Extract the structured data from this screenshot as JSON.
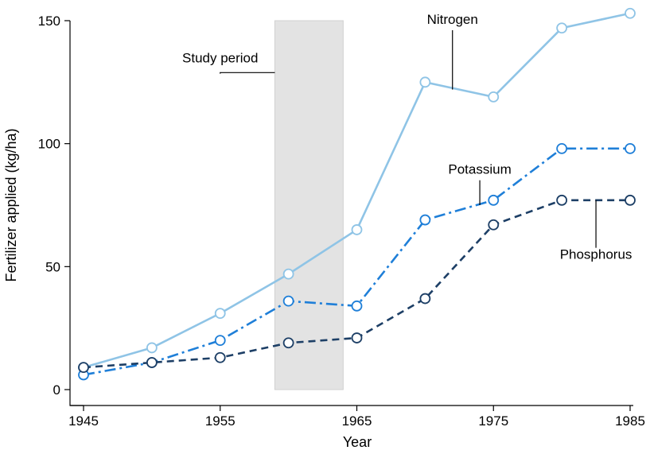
{
  "chart_data": {
    "type": "line",
    "title": "",
    "xlabel": "Year",
    "ylabel": "Fertilizer applied (kg/ha)",
    "xlim": [
      1945,
      1985
    ],
    "ylim": [
      0,
      150
    ],
    "x_ticks": [
      1945,
      1955,
      1965,
      1975,
      1985
    ],
    "y_ticks": [
      0,
      50,
      100,
      150
    ],
    "grid": false,
    "x": [
      1945,
      1950,
      1955,
      1960,
      1965,
      1970,
      1975,
      1980,
      1985
    ],
    "series": [
      {
        "name": "Nitrogen",
        "color": "#8fc4e6",
        "line_style": "solid",
        "values": [
          9,
          17,
          31,
          47,
          65,
          125,
          119,
          147,
          153
        ]
      },
      {
        "name": "Potassium",
        "color": "#1f7fd8",
        "line_style": "dash-dot",
        "values": [
          6,
          11,
          20,
          36,
          34,
          69,
          77,
          98,
          98
        ]
      },
      {
        "name": "Phosphorus",
        "color": "#1d3f66",
        "line_style": "dashed",
        "values": [
          9,
          11,
          13,
          19,
          21,
          37,
          67,
          77,
          77
        ]
      }
    ],
    "shaded_region": {
      "label": "Study period",
      "x_start": 1959,
      "x_end": 1964,
      "color": "#e3e3e3"
    },
    "annotations": [
      {
        "text": "Nitrogen",
        "series": "Nitrogen",
        "target_x": 1972,
        "target_y": 122,
        "label_x": 1972,
        "label_y": 150
      },
      {
        "text": "Potassium",
        "series": "Potassium",
        "target_x": 1974,
        "target_y": 75,
        "label_x": 1974,
        "label_y": 89
      },
      {
        "text": "Phosphorus",
        "series": "Phosphorus",
        "target_x": 1982.5,
        "target_y": 77,
        "label_x": 1982.5,
        "label_y": 57
      },
      {
        "text": "Study period",
        "series": "",
        "target_x": 1959,
        "target_y": 125,
        "label_x": 1955,
        "label_y": 133
      }
    ]
  }
}
